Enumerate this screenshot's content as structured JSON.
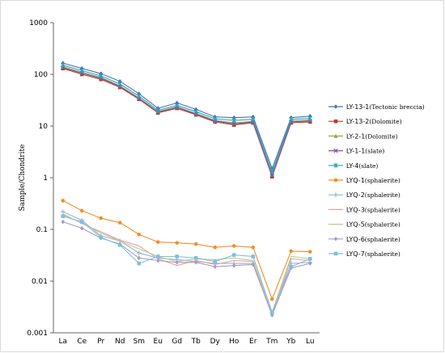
{
  "chart_data": {
    "type": "line",
    "title": "",
    "xlabel": "",
    "ylabel": "Sample/Chondrite",
    "y_scale": "log",
    "ylim": [
      0.001,
      1000
    ],
    "y_ticks": [
      "0.001",
      "0.01",
      "0.1",
      "1",
      "10",
      "100",
      "1000"
    ],
    "grid": false,
    "legend_position": "right",
    "categories": [
      "La",
      "Ce",
      "Pr",
      "Nd",
      "Sm",
      "Eu",
      "Gd",
      "Tb",
      "Dy",
      "Ho",
      "Er",
      "Tm",
      "Yb",
      "Lu"
    ],
    "series": [
      {
        "name": "LY-13-1",
        "note": "(Tectonic breccia)",
        "color": "#4a72b8",
        "marker": "diamond",
        "values": [
          165,
          130,
          103,
          73,
          42,
          22,
          28,
          21,
          15,
          14.5,
          15,
          1.5,
          14.5,
          15.5
        ]
      },
      {
        "name": "LY-13-2",
        "note": "(Dolomite)",
        "color": "#c0392b",
        "marker": "square",
        "values": [
          130,
          100,
          80,
          56,
          33,
          18,
          22,
          16.5,
          12,
          10.5,
          11.5,
          1.05,
          11.5,
          12
        ]
      },
      {
        "name": "LY-2-1",
        "note": "(Dolomite)",
        "color": "#8fae3e",
        "marker": "triangle",
        "values": [
          140,
          110,
          87,
          60,
          35,
          19,
          23.5,
          17.5,
          12.8,
          11.5,
          12.3,
          1.15,
          12.5,
          13
        ]
      },
      {
        "name": "LY-1-1",
        "note": "(slate)",
        "color": "#7a5a9e",
        "marker": "x",
        "values": [
          135,
          105,
          84,
          58,
          34,
          18.5,
          23,
          17,
          12.5,
          11,
          12,
          1.1,
          12,
          12.5
        ]
      },
      {
        "name": "LY-4",
        "note": "(slate)",
        "color": "#2aa3c4",
        "marker": "star",
        "values": [
          150,
          118,
          93,
          65,
          38,
          20,
          25,
          19,
          13.8,
          12.8,
          13.5,
          1.3,
          13.5,
          14
        ]
      },
      {
        "name": "LYQ-1",
        "note": "(sphalerite)",
        "color": "#f28e2b",
        "marker": "circle",
        "values": [
          0.36,
          0.23,
          0.165,
          0.135,
          0.08,
          0.057,
          0.055,
          0.052,
          0.045,
          0.048,
          0.045,
          0.0045,
          0.038,
          0.037
        ]
      },
      {
        "name": "LYQ-2",
        "note": "(sphalerite)",
        "color": "#9cb0d8",
        "marker": "plus",
        "values": [
          0.22,
          0.15,
          0.075,
          0.06,
          0.035,
          0.028,
          0.026,
          0.024,
          0.022,
          0.022,
          0.022,
          0.0024,
          0.022,
          0.023
        ]
      },
      {
        "name": "LYQ-3",
        "note": "(sphalerite)",
        "color": "#e8a0a0",
        "marker": "none",
        "values": [
          0.2,
          0.13,
          0.09,
          0.062,
          0.048,
          0.027,
          0.02,
          0.025,
          0.021,
          0.025,
          0.024,
          0.0023,
          0.027,
          0.025
        ]
      },
      {
        "name": "LYQ-5",
        "note": "(sphalerite)",
        "color": "#b7cf8e",
        "marker": "none",
        "values": [
          0.19,
          0.135,
          0.085,
          0.06,
          0.042,
          0.03,
          0.024,
          0.027,
          0.026,
          0.028,
          0.025,
          0.0025,
          0.03,
          0.027
        ]
      },
      {
        "name": "LYQ-6",
        "note": "(sphalerite)",
        "color": "#a89ac4",
        "marker": "diamond",
        "values": [
          0.14,
          0.105,
          0.068,
          0.052,
          0.028,
          0.025,
          0.023,
          0.023,
          0.019,
          0.02,
          0.021,
          0.0022,
          0.018,
          0.022
        ]
      },
      {
        "name": "LYQ-7",
        "note": "(sphalerite)",
        "color": "#7fbfdc",
        "marker": "square",
        "values": [
          0.18,
          0.14,
          0.07,
          0.05,
          0.022,
          0.03,
          0.03,
          0.028,
          0.024,
          0.032,
          0.03,
          0.0025,
          0.019,
          0.027
        ]
      }
    ]
  }
}
